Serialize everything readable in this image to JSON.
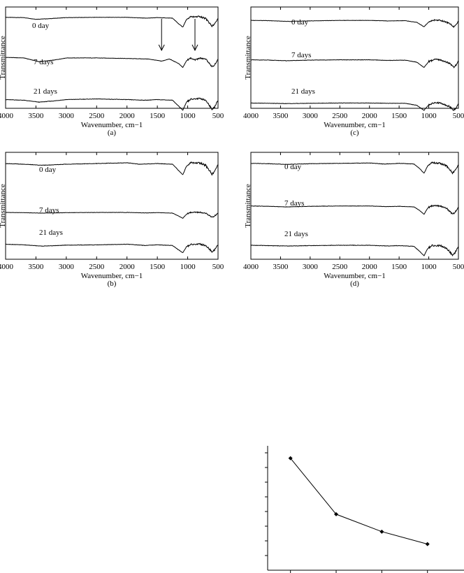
{
  "chart_data": [
    {
      "id": "a",
      "type": "line",
      "panel_label": "(a)",
      "xlabel": "Wavenumber, cm−1",
      "ylabel": "Transmittance",
      "xlim": [
        4000,
        500
      ],
      "x_ticks": [
        4000,
        3500,
        3000,
        2500,
        2000,
        1500,
        1000,
        500
      ],
      "arrows_at": [
        1430,
        880
      ],
      "series": [
        {
          "name": "0 day",
          "trend": [
            [
              4000,
              0.93
            ],
            [
              3700,
              0.92
            ],
            [
              3500,
              0.86
            ],
            [
              3300,
              0.88
            ],
            [
              3000,
              0.92
            ],
            [
              2500,
              0.93
            ],
            [
              2000,
              0.93
            ],
            [
              1700,
              0.9
            ],
            [
              1500,
              0.92
            ],
            [
              1250,
              0.9
            ],
            [
              1150,
              0.7
            ],
            [
              1080,
              0.58
            ],
            [
              1020,
              0.85
            ],
            [
              950,
              0.95
            ],
            [
              800,
              0.96
            ],
            [
              700,
              0.88
            ],
            [
              600,
              0.62
            ],
            [
              560,
              0.68
            ],
            [
              500,
              0.9
            ]
          ]
        },
        {
          "name": "7 days",
          "trend": [
            [
              4000,
              0.68
            ],
            [
              3700,
              0.66
            ],
            [
              3450,
              0.52
            ],
            [
              3200,
              0.58
            ],
            [
              3000,
              0.66
            ],
            [
              2500,
              0.66
            ],
            [
              2000,
              0.64
            ],
            [
              1650,
              0.62
            ],
            [
              1430,
              0.54
            ],
            [
              1300,
              0.62
            ],
            [
              1150,
              0.45
            ],
            [
              1080,
              0.3
            ],
            [
              1020,
              0.55
            ],
            [
              950,
              0.66
            ],
            [
              880,
              0.58
            ],
            [
              800,
              0.66
            ],
            [
              700,
              0.62
            ],
            [
              600,
              0.32
            ],
            [
              560,
              0.38
            ],
            [
              500,
              0.62
            ]
          ]
        },
        {
          "name": "21 days",
          "trend": [
            [
              4000,
              0.38
            ],
            [
              3700,
              0.36
            ],
            [
              3450,
              0.3
            ],
            [
              3200,
              0.34
            ],
            [
              3000,
              0.38
            ],
            [
              2500,
              0.4
            ],
            [
              2000,
              0.38
            ],
            [
              1700,
              0.36
            ],
            [
              1500,
              0.38
            ],
            [
              1250,
              0.36
            ],
            [
              1150,
              0.18
            ],
            [
              1080,
              0.05
            ],
            [
              1020,
              0.3
            ],
            [
              950,
              0.4
            ],
            [
              800,
              0.42
            ],
            [
              700,
              0.36
            ],
            [
              600,
              0.08
            ],
            [
              560,
              0.14
            ],
            [
              500,
              0.36
            ]
          ]
        }
      ]
    },
    {
      "id": "c",
      "type": "line",
      "panel_label": "(c)",
      "xlabel": "Wavenumber, cm−1",
      "ylabel": "Transmittance",
      "xlim": [
        4000,
        500
      ],
      "x_ticks": [
        4000,
        3500,
        3000,
        2500,
        2000,
        1500,
        1000,
        500
      ],
      "series": [
        {
          "name": "0 day",
          "trend": [
            [
              4000,
              0.88
            ],
            [
              3700,
              0.87
            ],
            [
              3400,
              0.84
            ],
            [
              3000,
              0.86
            ],
            [
              2500,
              0.88
            ],
            [
              2000,
              0.88
            ],
            [
              1700,
              0.86
            ],
            [
              1400,
              0.87
            ],
            [
              1200,
              0.8
            ],
            [
              1080,
              0.62
            ],
            [
              1000,
              0.82
            ],
            [
              900,
              0.9
            ],
            [
              800,
              0.88
            ],
            [
              650,
              0.76
            ],
            [
              580,
              0.62
            ],
            [
              540,
              0.7
            ],
            [
              500,
              0.86
            ]
          ]
        },
        {
          "name": "7 days",
          "trend": [
            [
              4000,
              0.58
            ],
            [
              3700,
              0.57
            ],
            [
              3400,
              0.55
            ],
            [
              3000,
              0.57
            ],
            [
              2500,
              0.58
            ],
            [
              2000,
              0.58
            ],
            [
              1700,
              0.56
            ],
            [
              1400,
              0.57
            ],
            [
              1200,
              0.5
            ],
            [
              1080,
              0.32
            ],
            [
              1000,
              0.52
            ],
            [
              900,
              0.6
            ],
            [
              800,
              0.58
            ],
            [
              650,
              0.46
            ],
            [
              580,
              0.33
            ],
            [
              540,
              0.4
            ],
            [
              500,
              0.56
            ]
          ]
        },
        {
          "name": "21 days",
          "trend": [
            [
              4000,
              0.3
            ],
            [
              3700,
              0.29
            ],
            [
              3400,
              0.28
            ],
            [
              3000,
              0.29
            ],
            [
              2500,
              0.3
            ],
            [
              2000,
              0.3
            ],
            [
              1700,
              0.29
            ],
            [
              1400,
              0.29
            ],
            [
              1200,
              0.22
            ],
            [
              1080,
              0.05
            ],
            [
              1000,
              0.24
            ],
            [
              900,
              0.32
            ],
            [
              800,
              0.3
            ],
            [
              650,
              0.18
            ],
            [
              580,
              0.06
            ],
            [
              540,
              0.12
            ],
            [
              500,
              0.28
            ]
          ]
        }
      ]
    },
    {
      "id": "b",
      "type": "line",
      "panel_label": "(b)",
      "xlabel": "Wavenumber, cm−1",
      "ylabel": "Transmittance",
      "xlim": [
        4000,
        500
      ],
      "x_ticks": [
        4000,
        3500,
        3000,
        2500,
        2000,
        1500,
        1000,
        500
      ],
      "series": [
        {
          "name": "0 day",
          "trend": [
            [
              4000,
              0.88
            ],
            [
              3700,
              0.86
            ],
            [
              3400,
              0.83
            ],
            [
              3000,
              0.86
            ],
            [
              2500,
              0.88
            ],
            [
              2000,
              0.9
            ],
            [
              1800,
              0.86
            ],
            [
              1500,
              0.88
            ],
            [
              1250,
              0.86
            ],
            [
              1150,
              0.68
            ],
            [
              1080,
              0.56
            ],
            [
              1020,
              0.8
            ],
            [
              950,
              0.9
            ],
            [
              800,
              0.9
            ],
            [
              700,
              0.82
            ],
            [
              600,
              0.58
            ],
            [
              560,
              0.65
            ],
            [
              500,
              0.86
            ]
          ]
        },
        {
          "name": "7 days",
          "trend": [
            [
              4000,
              0.5
            ],
            [
              3700,
              0.49
            ],
            [
              3400,
              0.47
            ],
            [
              3000,
              0.49
            ],
            [
              2500,
              0.5
            ],
            [
              2000,
              0.5
            ],
            [
              1700,
              0.48
            ],
            [
              1500,
              0.49
            ],
            [
              1250,
              0.47
            ],
            [
              1150,
              0.34
            ],
            [
              1080,
              0.24
            ],
            [
              1020,
              0.42
            ],
            [
              950,
              0.5
            ],
            [
              800,
              0.51
            ],
            [
              700,
              0.46
            ],
            [
              600,
              0.28
            ],
            [
              560,
              0.33
            ],
            [
              500,
              0.48
            ]
          ]
        },
        {
          "name": "21 days",
          "trend": [
            [
              4000,
              0.3
            ],
            [
              3700,
              0.28
            ],
            [
              3400,
              0.24
            ],
            [
              3000,
              0.27
            ],
            [
              2500,
              0.28
            ],
            [
              2000,
              0.3
            ],
            [
              1700,
              0.26
            ],
            [
              1500,
              0.28
            ],
            [
              1250,
              0.26
            ],
            [
              1150,
              0.12
            ],
            [
              1080,
              0.03
            ],
            [
              1020,
              0.22
            ],
            [
              950,
              0.3
            ],
            [
              800,
              0.31
            ],
            [
              700,
              0.26
            ],
            [
              600,
              0.06
            ],
            [
              560,
              0.12
            ],
            [
              500,
              0.28
            ]
          ]
        }
      ]
    },
    {
      "id": "d",
      "type": "line",
      "panel_label": "(d)",
      "xlabel": "Wavenumber, cm−1",
      "ylabel": "Transmittance",
      "xlim": [
        4000,
        500
      ],
      "x_ticks": [
        4000,
        3500,
        3000,
        2500,
        2000,
        1500,
        1000,
        500
      ],
      "series": [
        {
          "name": "0 day",
          "trend": [
            [
              4000,
              0.88
            ],
            [
              3700,
              0.87
            ],
            [
              3400,
              0.85
            ],
            [
              3000,
              0.87
            ],
            [
              2500,
              0.88
            ],
            [
              2000,
              0.89
            ],
            [
              1750,
              0.86
            ],
            [
              1500,
              0.88
            ],
            [
              1250,
              0.86
            ],
            [
              1150,
              0.72
            ],
            [
              1080,
              0.58
            ],
            [
              1020,
              0.8
            ],
            [
              950,
              0.9
            ],
            [
              800,
              0.88
            ],
            [
              700,
              0.8
            ],
            [
              600,
              0.6
            ],
            [
              560,
              0.66
            ],
            [
              500,
              0.84
            ]
          ]
        },
        {
          "name": "7 days",
          "trend": [
            [
              4000,
              0.6
            ],
            [
              3700,
              0.59
            ],
            [
              3400,
              0.57
            ],
            [
              3000,
              0.59
            ],
            [
              2500,
              0.6
            ],
            [
              2000,
              0.6
            ],
            [
              1700,
              0.58
            ],
            [
              1500,
              0.59
            ],
            [
              1250,
              0.57
            ],
            [
              1150,
              0.44
            ],
            [
              1080,
              0.32
            ],
            [
              1020,
              0.52
            ],
            [
              950,
              0.61
            ],
            [
              800,
              0.6
            ],
            [
              700,
              0.52
            ],
            [
              600,
              0.32
            ],
            [
              560,
              0.38
            ],
            [
              500,
              0.56
            ]
          ]
        },
        {
          "name": "21 days",
          "trend": [
            [
              4000,
              0.34
            ],
            [
              3700,
              0.33
            ],
            [
              3400,
              0.32
            ],
            [
              3000,
              0.33
            ],
            [
              2500,
              0.34
            ],
            [
              2000,
              0.34
            ],
            [
              1700,
              0.32
            ],
            [
              1500,
              0.33
            ],
            [
              1250,
              0.31
            ],
            [
              1150,
              0.16
            ],
            [
              1080,
              0.04
            ],
            [
              1020,
              0.24
            ],
            [
              950,
              0.34
            ],
            [
              800,
              0.33
            ],
            [
              700,
              0.26
            ],
            [
              600,
              0.06
            ],
            [
              560,
              0.12
            ],
            [
              500,
              0.3
            ]
          ]
        }
      ]
    },
    {
      "id": "e",
      "type": "line",
      "title": "",
      "xlabel": "",
      "ylabel": "",
      "x": [
        1,
        2,
        3,
        4
      ],
      "values": [
        0.9,
        0.45,
        0.31,
        0.21
      ],
      "xlim": [
        0.5,
        4.8
      ],
      "ylim": [
        0,
        1.0
      ],
      "y_tick_count": 8,
      "grid": false
    }
  ]
}
